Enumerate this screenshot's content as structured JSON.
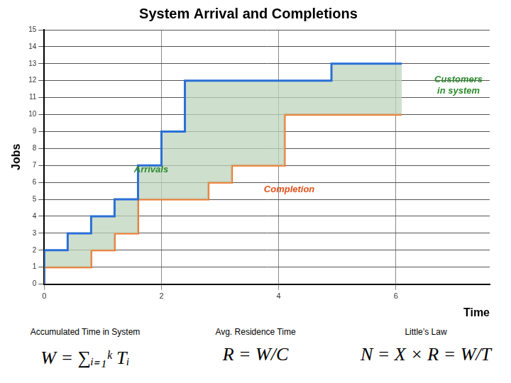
{
  "chart_data": {
    "type": "line",
    "title": "System Arrival and Completions",
    "x_label": "Time",
    "y_label": "Jobs",
    "xlim": [
      0,
      7.6
    ],
    "xticks": [
      0,
      2,
      4,
      6
    ],
    "ylim": [
      0,
      15
    ],
    "yticks": [
      0,
      1,
      2,
      3,
      4,
      5,
      6,
      7,
      8,
      9,
      10,
      11,
      12,
      13,
      14,
      15
    ],
    "grid": true,
    "series": [
      {
        "name": "Arrivals",
        "color": "#2a6fd6",
        "line_style": "stepped",
        "x": [
          0,
          0,
          0.4,
          0.8,
          1.2,
          1.6,
          2.0,
          2.4,
          4.9,
          5.3,
          6.1
        ],
        "values": [
          0,
          1,
          2,
          3,
          4,
          5,
          7,
          9,
          12,
          13,
          13
        ]
      },
      {
        "name": "Completion",
        "color": "#f07020",
        "line_style": "stepped",
        "x": [
          0,
          0.8,
          1.2,
          1.6,
          2.8,
          3.2,
          4.1,
          5.6,
          6.1
        ],
        "values": [
          0,
          1,
          2,
          3,
          5,
          6,
          7,
          10,
          10
        ]
      }
    ],
    "annotations": [
      {
        "text": "Arrivals",
        "color": "#2e8b2e"
      },
      {
        "text": "Completion",
        "color": "#e0501a"
      },
      {
        "text": "Customers in system",
        "color": "#2e8b2e"
      }
    ],
    "footer": [
      {
        "label": "Accumulated Time in System",
        "formula": "W = ∑ᵢ₌₁ᵏ Tᵢ"
      },
      {
        "label": "Avg. Residence Time",
        "formula": "R = W/C"
      },
      {
        "label": "Little’s Law",
        "formula": "N = X × R = W/T"
      }
    ]
  }
}
